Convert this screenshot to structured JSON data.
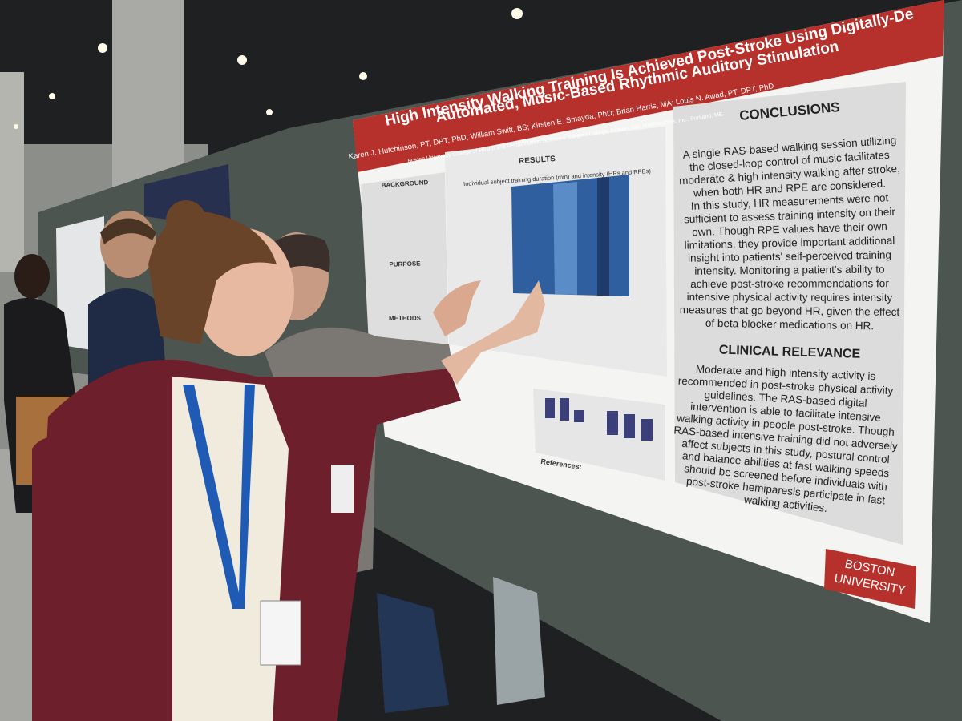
{
  "poster": {
    "title": [
      "High Intensity Walking Training Is Achieved Post-Stroke Using Digitally-De",
      "Automated, Music-Based Rhythmic Auditory Stimulation"
    ],
    "authors": "Karen J. Hutchinson, PT, DPT, PhD; William Swift, BS; Kirsten E. Smayda, PhD; Brian Harris, MA; Louis N. Awad, PT, DPT, PhD",
    "affiliation": "Boston University College of Health and Rehabilitation Sciences: Sargent College, Boston, MA; MedRhythms, Inc., Portland, ME",
    "background_heading": "BACKGROUND",
    "purpose_heading": "PURPOSE",
    "methods_heading": "METHODS",
    "results_heading": "RESULTS",
    "results_chart_title": "Individual subject training duration (min) and intensity (HRs and RPEs)",
    "conclusions": {
      "heading": "CONCLUSIONS",
      "lines": [
        "A single RAS-based walking session utilizing",
        "the closed-loop control of music facilitates",
        "moderate & high intensity walking after stroke,",
        "when both HR and RPE are considered.",
        "In this study, HR measurements were not",
        "sufficient to assess training intensity on their",
        "own. Though RPE values have their own",
        "limitations, they provide important additional",
        "insight into patients' self-perceived training",
        "intensity. Monitoring a patient's ability to",
        "achieve post-stroke recommendations for",
        "intensive physical activity requires intensity",
        "measures that go beyond HR, given the effect",
        "of beta blocker medications on HR."
      ]
    },
    "clinical_relevance": {
      "heading": "CLINICAL RELEVANCE",
      "lines": [
        "Moderate and high intensity activity is",
        "recommended in post-stroke physical activity",
        "guidelines. The RAS-based digital",
        "intervention is able to facilitate intensive",
        "walking activity in people post-stroke. Though",
        "RAS-based intensive training did not adversely",
        "affect subjects in this study, postural control",
        "and balance abilities at fast walking speeds",
        "should be screened before individuals with",
        "post-stroke hemiparesis participate in fast",
        "walking activities."
      ]
    },
    "references_heading": "References:",
    "logo": [
      "BOSTON",
      "UNIVERSITY"
    ]
  }
}
